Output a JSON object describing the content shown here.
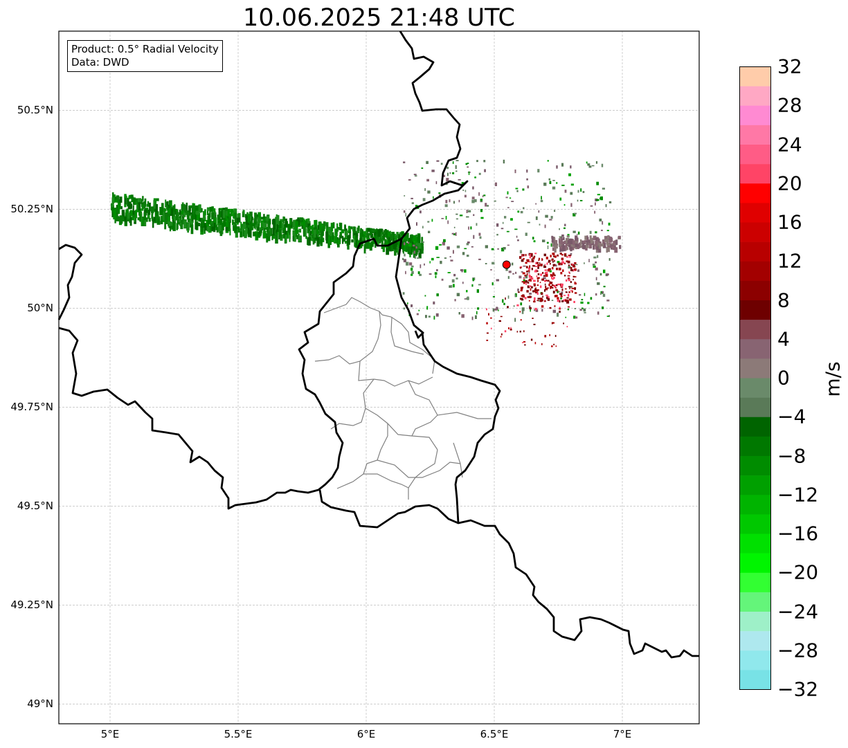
{
  "title": "10.06.2025 21:48 UTC",
  "info": {
    "product": "Product: 0.5° Radial Velocity",
    "data": "Data: DWD"
  },
  "map": {
    "lon_range": [
      4.8,
      7.3
    ],
    "lat_range": [
      48.95,
      50.7
    ],
    "lat_ticks": [
      {
        "value": 49.0,
        "label": "49°N"
      },
      {
        "value": 49.25,
        "label": "49.25°N"
      },
      {
        "value": 49.5,
        "label": "49.5°N"
      },
      {
        "value": 49.75,
        "label": "49.75°N"
      },
      {
        "value": 50.0,
        "label": "50°N"
      },
      {
        "value": 50.25,
        "label": "50.25°N"
      },
      {
        "value": 50.5,
        "label": "50.5°N"
      }
    ],
    "lon_ticks": [
      {
        "value": 5.0,
        "label": "5°E"
      },
      {
        "value": 5.5,
        "label": "5.5°E"
      },
      {
        "value": 6.0,
        "label": "6°E"
      },
      {
        "value": 6.5,
        "label": "6.5°E"
      },
      {
        "value": 7.0,
        "label": "7°E"
      }
    ],
    "grid": true,
    "radar_site": {
      "lon": 6.548,
      "lat": 50.11,
      "color": "#ff0000"
    }
  },
  "colorbar": {
    "unit": "m/s",
    "min": -32,
    "max": 32,
    "tick_labels": [
      "32",
      "28",
      "24",
      "20",
      "16",
      "12",
      "8",
      "4",
      "0",
      "−4",
      "−8",
      "−12",
      "−16",
      "−20",
      "−24",
      "−28",
      "−32"
    ],
    "colors_top_to_bottom": [
      "#ffccaa",
      "#ffa8c4",
      "#ff8ad2",
      "#ff78a6",
      "#ff5c86",
      "#ff4466",
      "#ff0000",
      "#e00000",
      "#cc0000",
      "#b80000",
      "#a30000",
      "#8c0000",
      "#6e0000",
      "#864651",
      "#886472",
      "#8c7a78",
      "#6a8a6a",
      "#5a7a58",
      "#006400",
      "#007800",
      "#008c00",
      "#00a000",
      "#00b400",
      "#00c800",
      "#00e000",
      "#00f500",
      "#32ff32",
      "#64f57a",
      "#9ef0c8",
      "#aee8ee",
      "#90e8ec",
      "#78e2e6"
    ]
  }
}
